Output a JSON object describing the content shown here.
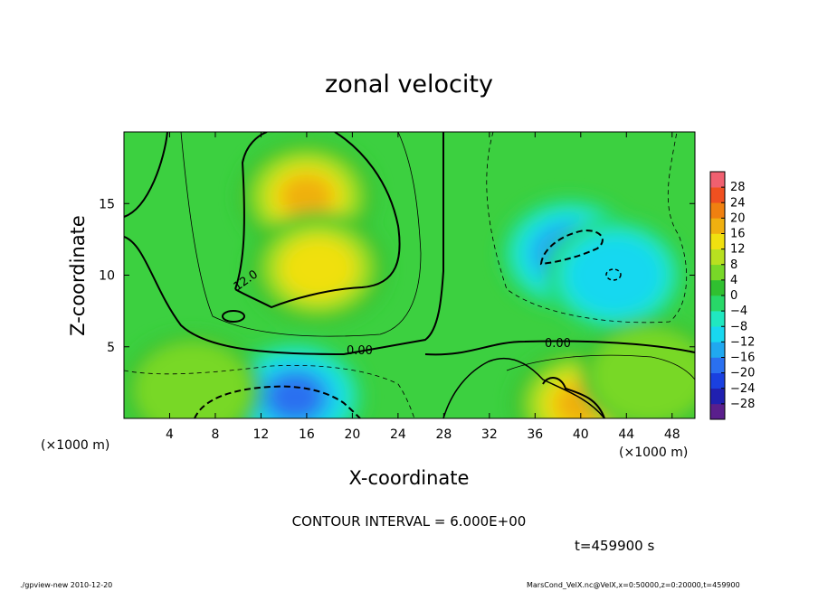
{
  "chart_data": {
    "type": "heatmap",
    "title": "zonal velocity",
    "xlabel": "X-coordinate",
    "ylabel": "Z-coordinate",
    "x_unit_left": "(×1000 m)",
    "x_unit_right": "(×1000 m)",
    "xlim": [
      0,
      50
    ],
    "ylim": [
      0,
      20
    ],
    "x_ticks": [
      4,
      8,
      12,
      16,
      20,
      24,
      28,
      32,
      36,
      40,
      44,
      48
    ],
    "y_ticks": [
      5,
      10,
      15
    ],
    "colorbar": {
      "levels": [
        -32,
        -28,
        -24,
        -20,
        -16,
        -12,
        -8,
        -4,
        0,
        4,
        8,
        12,
        16,
        20,
        24,
        28,
        32
      ],
      "tick_labels": [
        "28",
        "24",
        "20",
        "16",
        "12",
        "8",
        "4",
        "0",
        "−4",
        "−8",
        "−12",
        "−16",
        "−20",
        "−24",
        "−28"
      ],
      "colors": [
        "#5a1f8c",
        "#2020b0",
        "#1a40e0",
        "#2a70f0",
        "#20a8f0",
        "#18d8f0",
        "#20e8c0",
        "#28d868",
        "#30c030",
        "#78d828",
        "#b8e020",
        "#f0e010",
        "#f0b010",
        "#f08010",
        "#f05020",
        "#f06070"
      ]
    },
    "contour_interval": "CONTOUR INTERVAL = 6.000E+00",
    "contour_labels": [
      "12.0",
      "0.00",
      "0.00"
    ],
    "features": [
      {
        "x": 16,
        "z": 15.5,
        "value": 16
      },
      {
        "x": 17,
        "z": 10.5,
        "value": 15
      },
      {
        "x": 15,
        "z": 1.5,
        "value": -18
      },
      {
        "x": 39,
        "z": 11.5,
        "value": -12
      },
      {
        "x": 43,
        "z": 10,
        "value": -10
      },
      {
        "x": 40,
        "z": 1,
        "value": 16
      },
      {
        "x": 6,
        "z": 2,
        "value": 6
      },
      {
        "x": 46,
        "z": 3,
        "value": 7
      }
    ]
  },
  "time_label": "t=459900 s",
  "footer": {
    "left": "./gpview-new  2010-12-20",
    "right": "MarsCond_VelX.nc@VelX,x=0:50000,z=0:20000,t=459900"
  }
}
